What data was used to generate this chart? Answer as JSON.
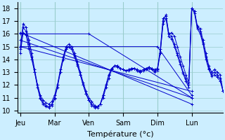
{
  "xlabel": "Température (°c)",
  "bg_color": "#cceeff",
  "grid_color": "#99cccc",
  "line_color": "#0000cc",
  "marker": "+",
  "x_tick_labels": [
    "Jeu",
    "Mar",
    "Ven",
    "Sam",
    "Dim",
    "Lun"
  ],
  "x_tick_positions": [
    0,
    24,
    48,
    72,
    96,
    120
  ],
  "ylim": [
    9.8,
    18.5
  ],
  "xlim": [
    -2,
    142
  ],
  "yticks": [
    10,
    11,
    12,
    13,
    14,
    15,
    16,
    17,
    18
  ],
  "series": [
    {
      "points": [
        [
          0,
          16.1
        ],
        [
          120,
          10.5
        ]
      ]
    },
    {
      "points": [
        [
          0,
          15.5
        ],
        [
          120,
          11.0
        ]
      ]
    },
    {
      "points": [
        [
          0,
          15.0
        ],
        [
          120,
          11.5
        ]
      ]
    },
    {
      "points": [
        [
          0,
          16.0
        ],
        [
          48,
          16.0
        ],
        [
          120,
          11.0
        ]
      ]
    },
    {
      "points": [
        [
          0,
          15.0
        ],
        [
          96,
          15.0
        ],
        [
          120,
          11.2
        ]
      ]
    },
    {
      "points": [
        [
          0,
          14.5
        ],
        [
          2,
          16.1
        ],
        [
          4,
          15.9
        ],
        [
          6,
          14.8
        ],
        [
          8,
          14.0
        ],
        [
          10,
          13.0
        ],
        [
          12,
          12.0
        ],
        [
          14,
          11.2
        ],
        [
          16,
          10.8
        ],
        [
          18,
          10.6
        ],
        [
          20,
          10.5
        ],
        [
          22,
          10.7
        ],
        [
          24,
          11.2
        ],
        [
          26,
          12.0
        ],
        [
          28,
          13.0
        ],
        [
          30,
          14.0
        ],
        [
          32,
          14.8
        ],
        [
          34,
          15.0
        ],
        [
          36,
          14.8
        ],
        [
          38,
          14.2
        ],
        [
          40,
          13.5
        ],
        [
          42,
          12.8
        ],
        [
          44,
          12.0
        ],
        [
          46,
          11.3
        ],
        [
          48,
          10.8
        ],
        [
          50,
          10.4
        ],
        [
          52,
          10.2
        ],
        [
          54,
          10.3
        ],
        [
          56,
          10.5
        ],
        [
          58,
          11.0
        ],
        [
          60,
          11.8
        ],
        [
          62,
          12.5
        ],
        [
          64,
          13.2
        ],
        [
          66,
          13.5
        ],
        [
          68,
          13.5
        ],
        [
          70,
          13.3
        ],
        [
          72,
          13.2
        ],
        [
          74,
          13.1
        ],
        [
          76,
          13.2
        ],
        [
          78,
          13.3
        ],
        [
          80,
          13.3
        ],
        [
          82,
          13.2
        ],
        [
          84,
          13.1
        ],
        [
          86,
          13.2
        ],
        [
          88,
          13.3
        ],
        [
          90,
          13.4
        ],
        [
          92,
          13.3
        ],
        [
          94,
          13.2
        ],
        [
          96,
          13.3
        ],
        [
          98,
          14.5
        ],
        [
          100,
          17.0
        ],
        [
          102,
          17.5
        ],
        [
          104,
          16.0
        ],
        [
          106,
          16.1
        ],
        [
          108,
          15.8
        ],
        [
          110,
          15.0
        ],
        [
          112,
          14.2
        ],
        [
          114,
          13.5
        ],
        [
          116,
          12.8
        ],
        [
          118,
          12.2
        ],
        [
          120,
          18.0
        ],
        [
          122,
          17.8
        ],
        [
          124,
          16.6
        ],
        [
          126,
          16.4
        ],
        [
          128,
          15.5
        ],
        [
          130,
          14.5
        ],
        [
          132,
          13.5
        ],
        [
          134,
          13.0
        ],
        [
          136,
          13.2
        ],
        [
          138,
          13.0
        ],
        [
          140,
          12.8
        ],
        [
          142,
          11.5
        ]
      ]
    },
    {
      "points": [
        [
          0,
          15.0
        ],
        [
          2,
          16.8
        ],
        [
          4,
          16.5
        ],
        [
          6,
          15.5
        ],
        [
          8,
          14.5
        ],
        [
          10,
          13.2
        ],
        [
          12,
          12.0
        ],
        [
          14,
          11.0
        ],
        [
          16,
          10.6
        ],
        [
          18,
          10.4
        ],
        [
          20,
          10.3
        ],
        [
          22,
          10.5
        ],
        [
          24,
          11.0
        ],
        [
          26,
          12.0
        ],
        [
          28,
          13.2
        ],
        [
          30,
          14.2
        ],
        [
          32,
          15.0
        ],
        [
          34,
          15.2
        ],
        [
          36,
          15.0
        ],
        [
          38,
          14.5
        ],
        [
          40,
          13.8
        ],
        [
          42,
          13.0
        ],
        [
          44,
          12.2
        ],
        [
          46,
          11.5
        ],
        [
          48,
          11.0
        ],
        [
          50,
          10.7
        ],
        [
          52,
          10.4
        ],
        [
          54,
          10.3
        ],
        [
          56,
          10.5
        ],
        [
          58,
          11.2
        ],
        [
          60,
          12.0
        ],
        [
          62,
          12.8
        ],
        [
          64,
          13.3
        ],
        [
          66,
          13.5
        ],
        [
          68,
          13.5
        ],
        [
          70,
          13.3
        ],
        [
          72,
          13.2
        ],
        [
          74,
          13.1
        ],
        [
          76,
          13.2
        ],
        [
          78,
          13.3
        ],
        [
          80,
          13.3
        ],
        [
          82,
          13.1
        ],
        [
          84,
          13.0
        ],
        [
          86,
          13.1
        ],
        [
          88,
          13.2
        ],
        [
          90,
          13.4
        ],
        [
          92,
          13.3
        ],
        [
          94,
          13.1
        ],
        [
          96,
          13.2
        ],
        [
          98,
          14.8
        ],
        [
          100,
          17.2
        ],
        [
          102,
          17.4
        ],
        [
          104,
          16.0
        ],
        [
          106,
          15.8
        ],
        [
          108,
          15.2
        ],
        [
          110,
          14.5
        ],
        [
          112,
          13.8
        ],
        [
          114,
          13.0
        ],
        [
          116,
          12.5
        ],
        [
          118,
          12.0
        ],
        [
          120,
          18.0
        ],
        [
          122,
          17.8
        ],
        [
          124,
          16.5
        ],
        [
          126,
          16.2
        ],
        [
          128,
          15.3
        ],
        [
          130,
          14.2
        ],
        [
          132,
          13.3
        ],
        [
          134,
          12.8
        ],
        [
          136,
          13.0
        ],
        [
          138,
          12.8
        ],
        [
          140,
          12.5
        ],
        [
          142,
          11.5
        ]
      ]
    },
    {
      "points": [
        [
          0,
          14.8
        ],
        [
          2,
          16.5
        ],
        [
          4,
          16.2
        ],
        [
          6,
          15.2
        ],
        [
          8,
          14.2
        ],
        [
          10,
          13.0
        ],
        [
          12,
          11.8
        ],
        [
          14,
          10.9
        ],
        [
          16,
          10.5
        ],
        [
          18,
          10.3
        ],
        [
          20,
          10.2
        ],
        [
          22,
          10.4
        ],
        [
          24,
          10.9
        ],
        [
          26,
          11.8
        ],
        [
          28,
          13.0
        ],
        [
          30,
          14.0
        ],
        [
          32,
          14.8
        ],
        [
          34,
          15.0
        ],
        [
          36,
          14.8
        ],
        [
          38,
          14.3
        ],
        [
          40,
          13.6
        ],
        [
          42,
          12.8
        ],
        [
          44,
          12.0
        ],
        [
          46,
          11.3
        ],
        [
          48,
          10.8
        ],
        [
          50,
          10.5
        ],
        [
          52,
          10.3
        ],
        [
          54,
          10.2
        ],
        [
          56,
          10.5
        ],
        [
          58,
          11.2
        ],
        [
          60,
          12.0
        ],
        [
          62,
          12.8
        ],
        [
          64,
          13.3
        ],
        [
          66,
          13.5
        ],
        [
          68,
          13.4
        ],
        [
          70,
          13.3
        ],
        [
          72,
          13.2
        ],
        [
          74,
          13.1
        ],
        [
          76,
          13.1
        ],
        [
          78,
          13.2
        ],
        [
          80,
          13.3
        ],
        [
          82,
          13.1
        ],
        [
          84,
          13.0
        ],
        [
          86,
          13.1
        ],
        [
          88,
          13.2
        ],
        [
          90,
          13.3
        ],
        [
          92,
          13.2
        ],
        [
          94,
          13.0
        ],
        [
          96,
          13.1
        ],
        [
          98,
          14.5
        ],
        [
          100,
          16.8
        ],
        [
          102,
          17.2
        ],
        [
          104,
          15.8
        ],
        [
          106,
          15.6
        ],
        [
          108,
          15.0
        ],
        [
          110,
          14.3
        ],
        [
          112,
          13.6
        ],
        [
          114,
          12.9
        ],
        [
          116,
          12.3
        ],
        [
          118,
          11.8
        ],
        [
          120,
          18.0
        ],
        [
          122,
          17.6
        ],
        [
          124,
          16.4
        ],
        [
          126,
          16.0
        ],
        [
          128,
          15.2
        ],
        [
          130,
          14.0
        ],
        [
          132,
          13.2
        ],
        [
          134,
          12.7
        ],
        [
          136,
          12.8
        ],
        [
          138,
          12.6
        ],
        [
          140,
          12.3
        ],
        [
          142,
          11.5
        ]
      ]
    }
  ]
}
